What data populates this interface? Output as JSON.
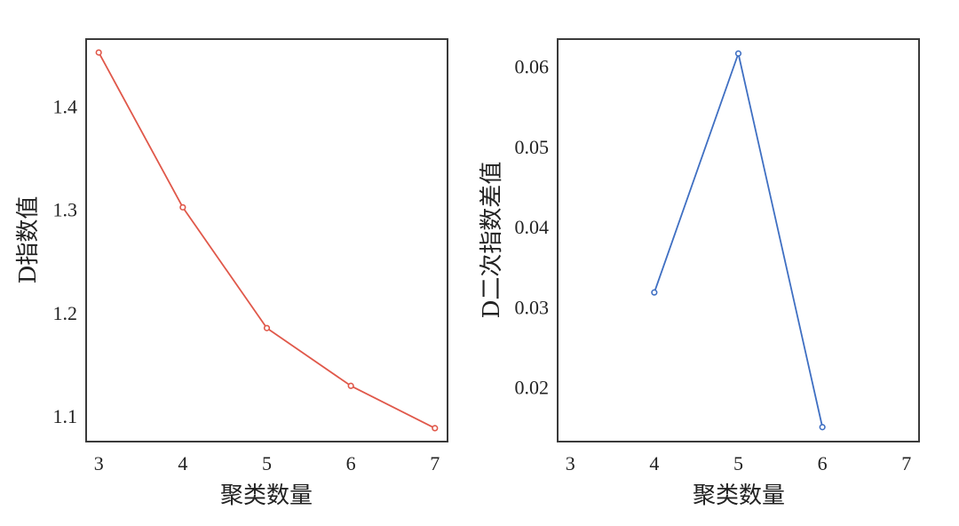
{
  "chart_data": [
    {
      "type": "line",
      "x": [
        3,
        4,
        5,
        6,
        7
      ],
      "series": [
        {
          "values": [
            1.452,
            1.302,
            1.185,
            1.129,
            1.088
          ],
          "color": "#e0584a"
        }
      ],
      "xlabel": "聚类数量",
      "ylabel": "D指数值",
      "xlim": [
        2.85,
        7.15
      ],
      "ylim": [
        1.075,
        1.465
      ],
      "xticks": [
        3,
        4,
        5,
        6,
        7
      ],
      "yticks": [
        1.1,
        1.2,
        1.3,
        1.4
      ],
      "ytick_labels": [
        "1.1",
        "1.2",
        "1.3",
        "1.4"
      ],
      "grid": false
    },
    {
      "type": "line",
      "x": [
        4,
        5,
        6
      ],
      "series": [
        {
          "values": [
            0.0318,
            0.0616,
            0.015
          ],
          "color": "#3f6fc2"
        }
      ],
      "xlabel": "聚类数量",
      "ylabel": "D二次指数差值",
      "xlim": [
        2.85,
        7.15
      ],
      "ylim": [
        0.0132,
        0.0634
      ],
      "xticks": [
        3,
        4,
        5,
        6,
        7
      ],
      "yticks": [
        0.02,
        0.03,
        0.04,
        0.05,
        0.06
      ],
      "ytick_labels": [
        "0.02",
        "0.03",
        "0.04",
        "0.05",
        "0.06"
      ],
      "grid": false
    }
  ]
}
